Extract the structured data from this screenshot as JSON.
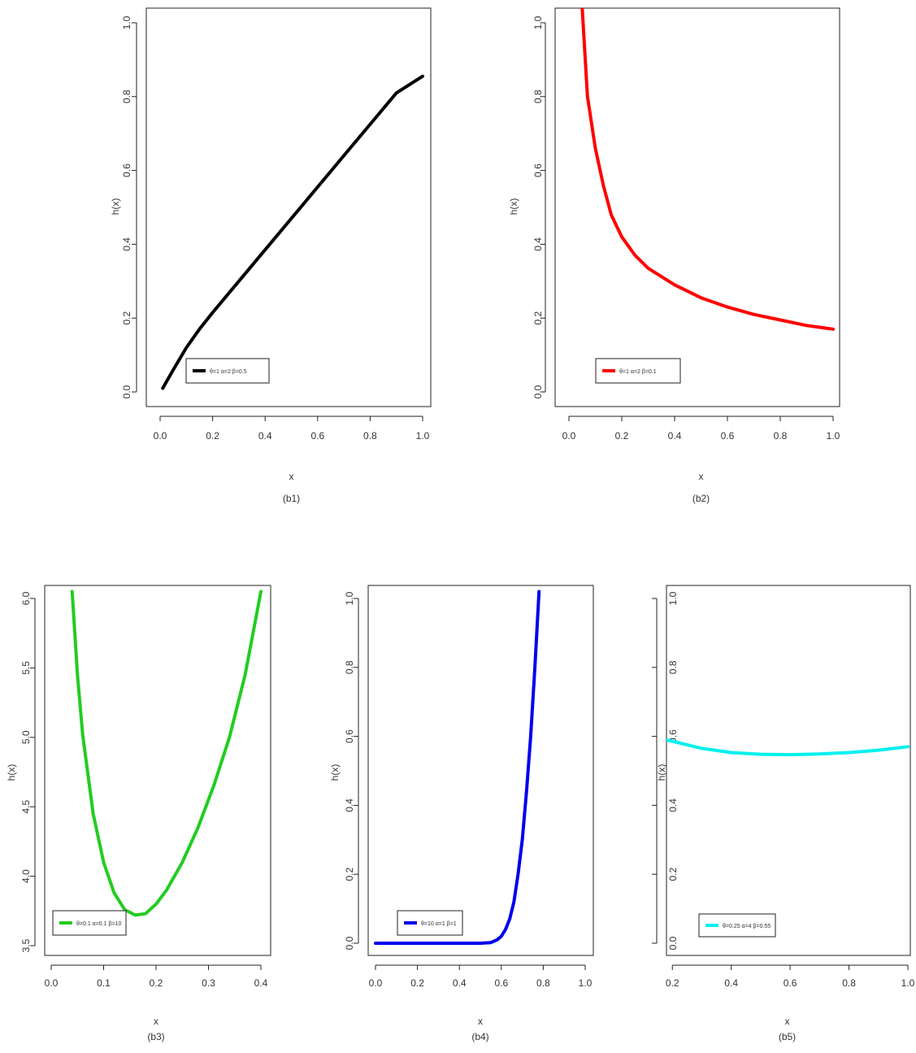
{
  "chart_data": [
    {
      "id": "b1",
      "type": "line",
      "xlabel": "x",
      "ylabel": "h(x)",
      "caption": "(b1)",
      "xlim": [
        0.0,
        1.0
      ],
      "ylim": [
        0.0,
        1.0
      ],
      "xticks": [
        "0.0",
        "0.2",
        "0.4",
        "0.6",
        "0.8",
        "1.0"
      ],
      "yticks": [
        "0.0",
        "0.2",
        "0.4",
        "0.6",
        "0.8",
        "1.0"
      ],
      "legend": {
        "label": "θ=1 α=2 β=0.5",
        "position": "bottom-left"
      },
      "series": [
        {
          "color": "#000000",
          "x": [
            0.01,
            0.05,
            0.1,
            0.15,
            0.2,
            0.3,
            0.4,
            0.5,
            0.6,
            0.7,
            0.8,
            0.9,
            1.0
          ],
          "y": [
            0.01,
            0.06,
            0.12,
            0.17,
            0.215,
            0.3,
            0.385,
            0.47,
            0.555,
            0.64,
            0.725,
            0.81,
            0.855
          ]
        }
      ]
    },
    {
      "id": "b2",
      "type": "line",
      "xlabel": "x",
      "ylabel": "h(x)",
      "caption": "(b2)",
      "xlim": [
        0.0,
        1.0
      ],
      "ylim": [
        0.0,
        1.0
      ],
      "xticks": [
        "0.0",
        "0.2",
        "0.4",
        "0.6",
        "0.8",
        "1.0"
      ],
      "yticks": [
        "0.0",
        "0.2",
        "0.4",
        "0.6",
        "0.8",
        "1.0"
      ],
      "legend": {
        "label": "θ=1 α=2 β=0.1",
        "position": "bottom-left"
      },
      "series": [
        {
          "color": "#ff0000",
          "x": [
            0.05,
            0.07,
            0.1,
            0.13,
            0.16,
            0.2,
            0.25,
            0.3,
            0.4,
            0.5,
            0.6,
            0.7,
            0.8,
            0.9,
            1.0
          ],
          "y": [
            1.04,
            0.8,
            0.66,
            0.56,
            0.48,
            0.42,
            0.37,
            0.335,
            0.29,
            0.255,
            0.23,
            0.21,
            0.195,
            0.18,
            0.17
          ]
        }
      ]
    },
    {
      "id": "b3",
      "type": "line",
      "xlabel": "x",
      "ylabel": "h(x)",
      "caption": "(b3)",
      "xlim": [
        0.0,
        0.4
      ],
      "ylim": [
        3.5,
        6.0
      ],
      "xticks": [
        "0.0",
        "0.1",
        "0.2",
        "0.3",
        "0.4"
      ],
      "yticks": [
        "3.5",
        "4.0",
        "4.5",
        "5.0",
        "5.5",
        "6.0"
      ],
      "legend": {
        "label": "θ=0.1 α=0.1 β=10",
        "position": "bottom-left"
      },
      "series": [
        {
          "color": "#22cc22",
          "x": [
            0.04,
            0.05,
            0.06,
            0.08,
            0.1,
            0.12,
            0.14,
            0.16,
            0.18,
            0.2,
            0.22,
            0.25,
            0.28,
            0.31,
            0.34,
            0.37,
            0.4
          ],
          "y": [
            6.05,
            5.45,
            5.02,
            4.45,
            4.1,
            3.88,
            3.76,
            3.72,
            3.73,
            3.8,
            3.9,
            4.1,
            4.35,
            4.65,
            5.0,
            5.45,
            6.05
          ]
        }
      ]
    },
    {
      "id": "b4",
      "type": "line",
      "xlabel": "x",
      "ylabel": "h(x)",
      "caption": "(b4)",
      "xlim": [
        0.0,
        1.0
      ],
      "ylim": [
        0.0,
        1.0
      ],
      "xticks": [
        "0.0",
        "0.2",
        "0.4",
        "0.6",
        "0.8",
        "1.0"
      ],
      "yticks": [
        "0.0",
        "0.2",
        "0.4",
        "0.6",
        "0.8",
        "1.0"
      ],
      "legend": {
        "label": "θ=10 α=1 β=1",
        "position": "bottom-left"
      },
      "series": [
        {
          "color": "#0000ee",
          "x": [
            0.0,
            0.1,
            0.2,
            0.3,
            0.4,
            0.5,
            0.55,
            0.58,
            0.6,
            0.62,
            0.64,
            0.66,
            0.68,
            0.7,
            0.72,
            0.74,
            0.76,
            0.78
          ],
          "y": [
            0.0,
            0.0,
            0.0,
            0.0,
            0.0,
            0.0,
            0.002,
            0.01,
            0.02,
            0.04,
            0.07,
            0.12,
            0.2,
            0.3,
            0.44,
            0.6,
            0.8,
            1.02
          ]
        }
      ]
    },
    {
      "id": "b5",
      "type": "line",
      "xlabel": "x",
      "ylabel": "h(x)",
      "caption": "(b5)",
      "xlim": [
        0.18,
        1.0
      ],
      "ylim": [
        0.0,
        1.0
      ],
      "xticks": [
        "0.2",
        "0.4",
        "0.6",
        "0.8",
        "1.0"
      ],
      "yticks": [
        "0.0",
        "0.2",
        "0.4",
        "0.6",
        "0.8",
        "1.0"
      ],
      "legend": {
        "label": "θ=0.25 α=4 β=0.55",
        "position": "bottom-left"
      },
      "series": [
        {
          "color": "#00f0f0",
          "x": [
            0.18,
            0.3,
            0.4,
            0.5,
            0.6,
            0.7,
            0.8,
            0.9,
            1.0
          ],
          "y": [
            0.59,
            0.565,
            0.553,
            0.548,
            0.547,
            0.549,
            0.553,
            0.56,
            0.57
          ]
        }
      ]
    }
  ]
}
